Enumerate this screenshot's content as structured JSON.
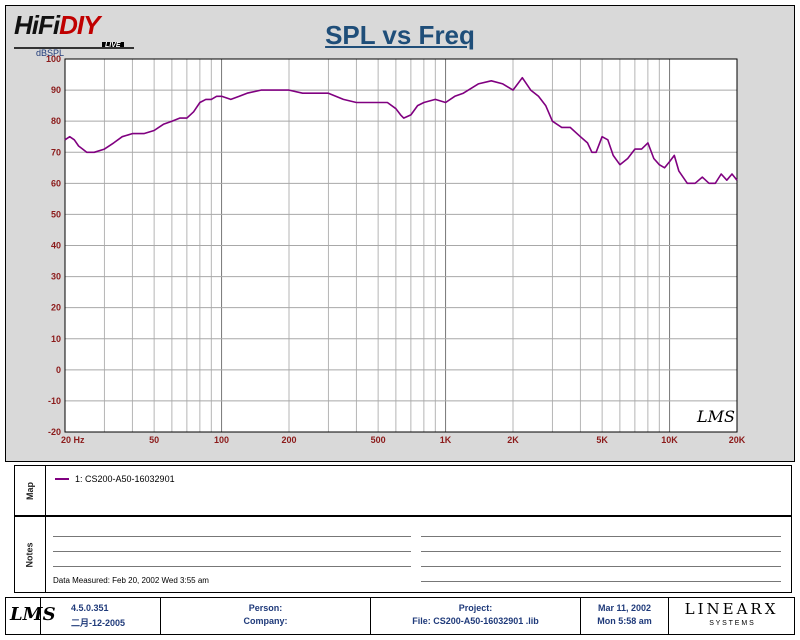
{
  "header": {
    "logo": {
      "part1": "HiFi",
      "part2": "DIY",
      "badge": "LIVE"
    },
    "title": "SPL vs Freq"
  },
  "chart_data": {
    "type": "line",
    "title": "SPL vs Freq",
    "ylabel": "dBSPL",
    "xlabel": "",
    "x_scale": "log",
    "xlim": [
      20,
      20000
    ],
    "ylim": [
      -20,
      100
    ],
    "grid": true,
    "x_tick_labels": [
      {
        "x": 20,
        "label": "20  Hz"
      },
      {
        "x": 50,
        "label": "50"
      },
      {
        "x": 100,
        "label": "100"
      },
      {
        "x": 200,
        "label": "200"
      },
      {
        "x": 500,
        "label": "500"
      },
      {
        "x": 1000,
        "label": "1K"
      },
      {
        "x": 2000,
        "label": "2K"
      },
      {
        "x": 5000,
        "label": "5K"
      },
      {
        "x": 10000,
        "label": "10K"
      },
      {
        "x": 20000,
        "label": "20K"
      }
    ],
    "y_ticks": [
      100,
      90,
      80,
      70,
      60,
      50,
      40,
      30,
      20,
      10,
      0,
      -10,
      -20
    ],
    "series": [
      {
        "name": "1: CS200-A50-16032901",
        "color": "#800080",
        "x": [
          20,
          21,
          22,
          23,
          24,
          25,
          27,
          30,
          33,
          36,
          40,
          45,
          50,
          55,
          60,
          65,
          70,
          75,
          80,
          85,
          90,
          95,
          100,
          110,
          120,
          130,
          150,
          170,
          200,
          230,
          260,
          300,
          350,
          400,
          450,
          500,
          550,
          600,
          630,
          650,
          700,
          750,
          800,
          900,
          1000,
          1100,
          1200,
          1400,
          1600,
          1800,
          2000,
          2100,
          2200,
          2400,
          2600,
          2800,
          3000,
          3300,
          3600,
          4000,
          4300,
          4500,
          4700,
          5000,
          5300,
          5600,
          6000,
          6500,
          7000,
          7500,
          8000,
          8500,
          9000,
          9500,
          10000,
          10500,
          11000,
          12000,
          13000,
          14000,
          15000,
          16000,
          17000,
          18000,
          19000,
          20000
        ],
        "y": [
          74,
          75,
          74,
          72,
          71,
          70,
          70,
          71,
          73,
          75,
          76,
          76,
          77,
          79,
          80,
          81,
          81,
          83,
          86,
          87,
          87,
          88,
          88,
          87,
          88,
          89,
          90,
          90,
          90,
          89,
          89,
          89,
          87,
          86,
          86,
          86,
          86,
          84,
          82,
          81,
          82,
          85,
          86,
          87,
          86,
          88,
          89,
          92,
          93,
          92,
          90,
          92,
          94,
          90,
          88,
          85,
          80,
          78,
          78,
          75,
          73,
          70,
          70,
          75,
          74,
          69,
          66,
          68,
          71,
          71,
          73,
          68,
          66,
          65,
          67,
          69,
          64,
          60,
          60,
          62,
          60,
          60,
          63,
          61,
          63,
          61
        ]
      }
    ]
  },
  "map": {
    "label": "Map",
    "legend": "1: CS200-A50-16032901"
  },
  "notes": {
    "label": "Notes",
    "data_measured": "Data Measured: Feb 20, 2002  Wed  3:55 am"
  },
  "footer": {
    "lms_logo": "LMS",
    "version": "4.5.0.351",
    "version_date": "二月-12-2005",
    "person_label": "Person:",
    "company_label": "Company:",
    "project_label": "Project:",
    "file_label": "File: CS200-A50-16032901 .lib",
    "date": "Mar 11, 2002",
    "time": "Mon  5:58 am",
    "brand": "LINEARX",
    "brand_sub": "S Y S T E M S"
  },
  "watermark": "LMS"
}
